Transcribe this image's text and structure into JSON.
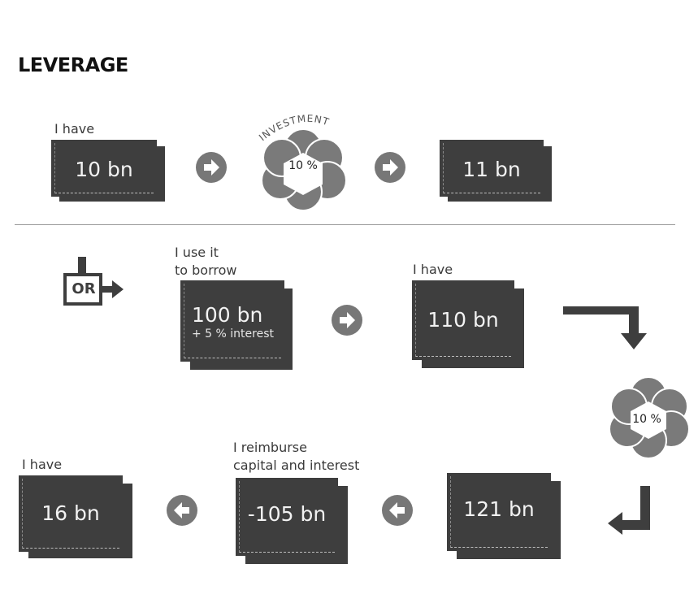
{
  "title": "LEVERAGE",
  "row1": {
    "label": "I have",
    "start_amount": "10 bn",
    "investment_label": "INVESTMENT",
    "rate": "10 %",
    "end_amount": "11 bn"
  },
  "row2": {
    "or_label": "OR",
    "borrow_note": [
      "I use it",
      "to borrow"
    ],
    "borrow_amount": "100 bn",
    "borrow_interest": "+ 5 % interest",
    "have_label": "I have",
    "have_amount": "110 bn",
    "rate": "10 %"
  },
  "row3": {
    "grown_amount": "121 bn",
    "reimburse_note": [
      "I reimburse",
      "capital and interest"
    ],
    "reimburse_amount": "-105 bn",
    "have_label": "I have",
    "final_amount": "16 bn"
  },
  "colors": {
    "bill": "#3e3e3e",
    "flower": "#7a7a7a",
    "arrow_circle": "#777777",
    "text": "#3a3a3a"
  }
}
